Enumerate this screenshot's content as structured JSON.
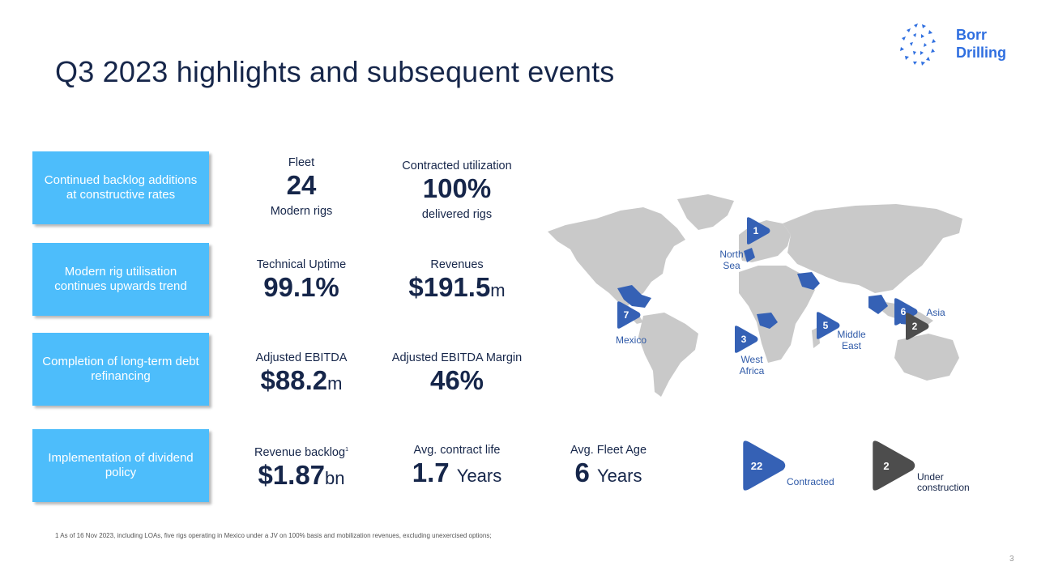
{
  "title": "Q3 2023 highlights and subsequent events",
  "brand": {
    "line1": "Borr",
    "line2": "Drilling",
    "color": "#2f6fe0"
  },
  "highlights": [
    "Continued backlog additions at constructive rates",
    "Modern rig utilisation continues upwards trend",
    "Completion of long-term debt refinancing",
    "Implementation of dividend policy"
  ],
  "metrics": {
    "fleet": {
      "label": "Fleet",
      "value": "24",
      "sub": "Modern rigs"
    },
    "utilization": {
      "label": "Contracted utilization",
      "value": "100%",
      "sub": "delivered rigs"
    },
    "uptime": {
      "label": "Technical Uptime",
      "value": "99.1%"
    },
    "revenues": {
      "label": "Revenues",
      "value": "$191.5",
      "unit": "m"
    },
    "ebitda": {
      "label": "Adjusted EBITDA",
      "value": "$88.2",
      "unit": "m"
    },
    "ebitda_margin": {
      "label": "Adjusted EBITDA Margin",
      "value": "46%"
    },
    "backlog": {
      "label": "Revenue backlog",
      "sup": "1",
      "value": "$1.87",
      "unit": "bn"
    },
    "contract_life": {
      "label": "Avg. contract life",
      "value": "1.7",
      "unit": "Years"
    },
    "fleet_age": {
      "label": "Avg. Fleet Age",
      "value": "6",
      "unit": "Years"
    }
  },
  "map": {
    "regions": [
      {
        "name": "North Sea",
        "count": "1"
      },
      {
        "name": "Mexico",
        "count": "7"
      },
      {
        "name": "West Africa",
        "count": "3"
      },
      {
        "name": "Middle East",
        "count": "5"
      },
      {
        "name": "Asia",
        "count": "6",
        "under_construction": "2"
      }
    ]
  },
  "legend": {
    "contracted": {
      "count": "22",
      "label": "Contracted"
    },
    "under_construction": {
      "count": "2",
      "label": "Under construction"
    }
  },
  "colors": {
    "box": "#4dbdfb",
    "marker_blue": "#3561b5",
    "marker_gray": "#4d4d4d",
    "text": "#16264a"
  },
  "footnote": "1 As of 16 Nov 2023, including LOAs, five rigs operating in Mexico under a JV on 100% basis and mobilization revenues, excluding unexercised options;",
  "page_number": "3"
}
